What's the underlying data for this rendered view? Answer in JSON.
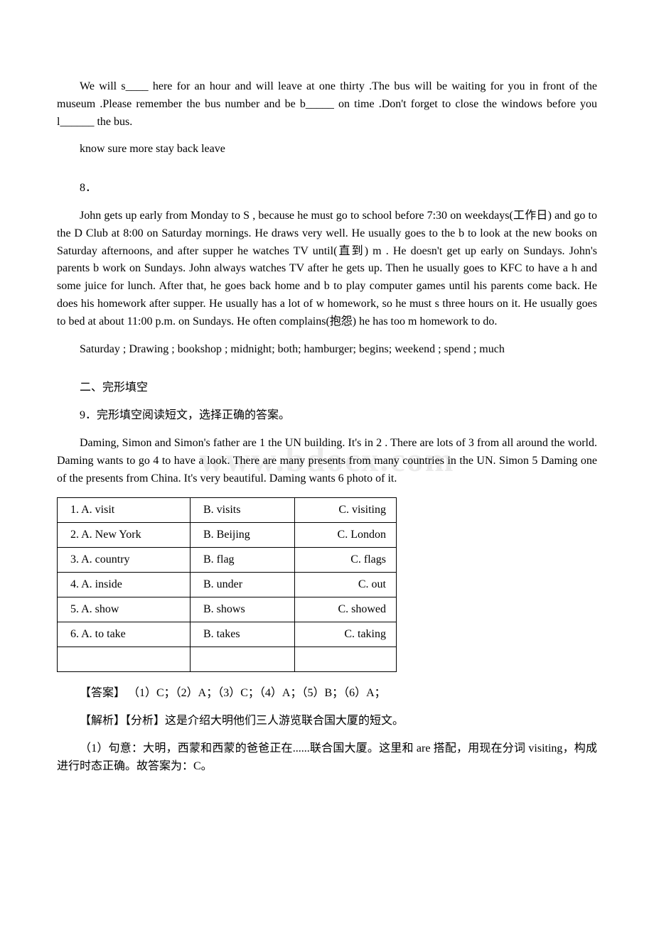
{
  "exercise7": {
    "p1": "We will s____ here for an hour and will leave at one thirty .The bus will be waiting for you in front of the museum .Please remember the bus number and be b_____ on time .Don't forget to close the windows before you l______ the bus.",
    "answers": "know  sure   more  stay  back  leave"
  },
  "exercise8": {
    "num": "8．",
    "p1": "John gets up early from Monday to S , because he must go to school before 7:30 on weekdays(工作日) and go to the D Club at 8:00 on Saturday mornings. He draws very well. He usually goes to the b to look at the new books on Saturday afternoons, and after supper he watches TV until(直到) m . He doesn't get up early on Sundays. John's parents b work on Sundays. John always watches TV after he gets up. Then he usually goes to KFC to have a h and some juice for lunch. After that, he goes back home and b to play computer games until his parents come back. He does his homework after supper. He usually has a lot of w homework, so he must s three hours on it. He usually goes to bed at about 11:00 p.m. on Sundays. He often complains(抱怨) he has too m homework to do.",
    "answers": "Saturday ; Drawing ; bookshop ; midnight; both; hamburger; begins; weekend ; spend ; much"
  },
  "section2": {
    "heading": "二、完形填空",
    "q9_intro": "9．完形填空阅读短文，选择正确的答案。",
    "passage": "    Daming, Simon and Simon's father are  1  the UN building. It's in 2 . There are lots of  3  from all around the world. Daming wants to go  4  to have a look. There are many presents from many countries in the UN. Simon  5  Daming one of the presents from China. It's very beautiful. Daming wants  6  photo of it."
  },
  "options": {
    "rows": [
      {
        "a": "1. A. visit",
        "b": "B. visits",
        "c": "C. visiting"
      },
      {
        "a": "2. A. New York",
        "b": "B. Beijing",
        "c": "C. London"
      },
      {
        "a": "3. A. country",
        "b": "B. flag",
        "c": "C. flags"
      },
      {
        "a": "4. A. inside",
        "b": "B. under",
        "c": "C. out"
      },
      {
        "a": "5. A. show",
        "b": "B. shows",
        "c": "C. showed"
      },
      {
        "a": "6. A. to take",
        "b": "B. takes",
        "c": "C. taking"
      }
    ]
  },
  "answer": {
    "line": "【答案】 （1）C；（2）A；（3）C；（4）A；（5）B；（6）A；",
    "analysis_head": "【解析】【分析】这是介绍大明他们三人游览联合国大厦的短文。",
    "analysis_1": "（1）句意：大明，西蒙和西蒙的爸爸正在......联合国大厦。这里和 are 搭配，用现在分词 visiting，构成进行时态正确。故答案为：C。"
  },
  "watermark": "www.bdocx.com"
}
